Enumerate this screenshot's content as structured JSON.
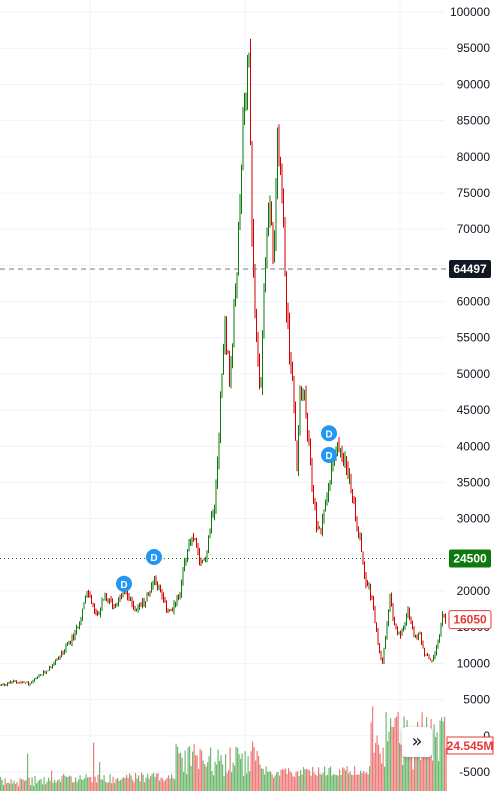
{
  "chart_data": {
    "type": "candlestick",
    "y_axis": {
      "ticks": [
        100000,
        95000,
        90000,
        85000,
        80000,
        75000,
        70000,
        65000,
        60000,
        55000,
        50000,
        45000,
        40000,
        35000,
        30000,
        25000,
        20000,
        15000,
        10000,
        5000,
        0,
        -5000
      ],
      "range": [
        -6500,
        101500
      ]
    },
    "price_path": [
      [
        0,
        7000
      ],
      [
        15,
        7500
      ],
      [
        30,
        7200
      ],
      [
        45,
        8800
      ],
      [
        60,
        11000
      ],
      [
        75,
        14000
      ],
      [
        88,
        20000
      ],
      [
        96,
        16500
      ],
      [
        105,
        19000
      ],
      [
        115,
        18000
      ],
      [
        125,
        20000
      ],
      [
        135,
        17500
      ],
      [
        145,
        18500
      ],
      [
        155,
        22000
      ],
      [
        165,
        18000
      ],
      [
        172,
        17000
      ],
      [
        180,
        20000
      ],
      [
        188,
        26000
      ],
      [
        195,
        27500
      ],
      [
        200,
        23000
      ],
      [
        205,
        24500
      ],
      [
        215,
        33000
      ],
      [
        220,
        45000
      ],
      [
        225,
        57000
      ],
      [
        230,
        48000
      ],
      [
        236,
        63000
      ],
      [
        240,
        72000
      ],
      [
        244,
        88000
      ],
      [
        249,
        96000
      ],
      [
        252,
        70000
      ],
      [
        256,
        55000
      ],
      [
        260,
        46000
      ],
      [
        265,
        65000
      ],
      [
        270,
        74000
      ],
      [
        274,
        64000
      ],
      [
        278,
        84000
      ],
      [
        283,
        72000
      ],
      [
        287,
        58000
      ],
      [
        292,
        50000
      ],
      [
        297,
        37000
      ],
      [
        300,
        47000
      ],
      [
        305,
        46000
      ],
      [
        310,
        38000
      ],
      [
        314,
        32000
      ],
      [
        318,
        28000
      ],
      [
        322,
        29000
      ],
      [
        328,
        35000
      ],
      [
        335,
        39000
      ],
      [
        340,
        40000
      ],
      [
        345,
        38000
      ],
      [
        350,
        35000
      ],
      [
        355,
        31000
      ],
      [
        360,
        27000
      ],
      [
        365,
        22000
      ],
      [
        370,
        20000
      ],
      [
        375,
        16000
      ],
      [
        379,
        12000
      ],
      [
        382,
        10000
      ],
      [
        386,
        14000
      ],
      [
        390,
        19000
      ],
      [
        395,
        15000
      ],
      [
        400,
        14000
      ],
      [
        408,
        17000
      ],
      [
        415,
        13500
      ],
      [
        420,
        14000
      ],
      [
        425,
        11000
      ],
      [
        432,
        10500
      ],
      [
        438,
        13000
      ],
      [
        442,
        16500
      ],
      [
        446,
        16050
      ]
    ],
    "reference_lines": [
      {
        "value": 64497,
        "label": "64497",
        "style": "dashed",
        "color": "#787b86",
        "label_bg": "#131722"
      },
      {
        "value": 24500,
        "label": "24500",
        "style": "dotted",
        "color": "#0e7a0d",
        "label_bg": "#0e7a0d"
      }
    ],
    "last_price": {
      "value": 16050,
      "label": "16050",
      "color": "#e53935"
    },
    "volume_label": {
      "label": "24.545M",
      "color": "#e53935"
    },
    "dividend_markers": [
      {
        "label": "D",
        "price": 21000
      },
      {
        "label": "D",
        "price": 24700
      },
      {
        "label": "D",
        "price": 41800
      },
      {
        "label": "D",
        "price": 38800
      }
    ],
    "colors": {
      "up": "#0e7a0d",
      "down": "#d50000",
      "volume_up": "#6fba6f",
      "volume_down": "#ef7c7c",
      "marker": "#2196f3",
      "grid": "#f0f3fa"
    }
  },
  "controls": {
    "scroll_button": {
      "icon": "double-chevron-right-icon",
      "glyph": "»"
    }
  }
}
